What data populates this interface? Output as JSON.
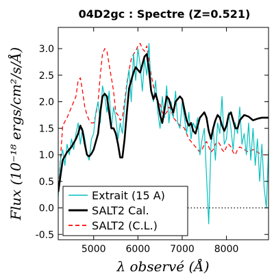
{
  "chart_data": {
    "type": "line",
    "title": "04D2gc : Spectre (Z=0.521)",
    "xlabel": "λ observé (Å)",
    "ylabel": "Flux (10⁻¹⁸ ergs/cm²/s/Å)",
    "xlim": [
      4200,
      8950
    ],
    "ylim": [
      -0.6,
      3.4
    ],
    "xticks": [
      5000,
      6000,
      7000,
      8000
    ],
    "yticks": [
      -0.5,
      0.0,
      0.5,
      1.0,
      1.5,
      2.0,
      2.5,
      3.0
    ],
    "xtick_labels": [
      "5000",
      "6000",
      "7000",
      "8000"
    ],
    "ytick_labels": [
      "-0.5",
      "0.0",
      "0.5",
      "1.0",
      "1.5",
      "2.0",
      "2.5",
      "3.0"
    ],
    "zero_line": 0.0,
    "legend_position": "lower-left",
    "series": [
      {
        "name": "Extrait (15 A)",
        "color": "#00bfbf",
        "style": "solid",
        "x": [
          4200,
          4250,
          4300,
          4350,
          4400,
          4450,
          4500,
          4550,
          4600,
          4650,
          4700,
          4750,
          4800,
          4850,
          4900,
          4950,
          5000,
          5050,
          5100,
          5150,
          5200,
          5250,
          5300,
          5350,
          5400,
          5450,
          5500,
          5550,
          5600,
          5650,
          5700,
          5750,
          5800,
          5850,
          5900,
          5950,
          6000,
          6050,
          6100,
          6150,
          6200,
          6250,
          6300,
          6350,
          6400,
          6450,
          6500,
          6550,
          6600,
          6650,
          6700,
          6750,
          6800,
          6850,
          6900,
          6950,
          7000,
          7050,
          7100,
          7150,
          7200,
          7250,
          7300,
          7350,
          7400,
          7450,
          7500,
          7550,
          7600,
          7650,
          7700,
          7750,
          7800,
          7850,
          7900,
          7950,
          8000,
          8050,
          8100,
          8150,
          8200,
          8250,
          8300,
          8350,
          8400,
          8450,
          8500,
          8550,
          8600,
          8650,
          8700,
          8750,
          8800,
          8850,
          8900,
          8950
        ],
        "y": [
          0.2,
          0.9,
          1.1,
          0.8,
          1.2,
          1.0,
          1.3,
          1.1,
          1.4,
          1.6,
          1.2,
          1.5,
          1.3,
          1.0,
          0.9,
          1.3,
          1.4,
          1.8,
          2.0,
          1.6,
          2.3,
          2.1,
          1.8,
          2.2,
          1.5,
          1.9,
          1.7,
          1.3,
          1.6,
          1.4,
          1.9,
          2.3,
          2.6,
          2.0,
          2.9,
          2.4,
          3.0,
          2.7,
          2.2,
          2.8,
          2.5,
          3.1,
          2.2,
          2.0,
          2.4,
          1.8,
          1.5,
          2.1,
          1.7,
          2.3,
          1.6,
          2.0,
          1.7,
          2.2,
          1.6,
          1.5,
          2.0,
          1.7,
          1.4,
          1.8,
          1.3,
          1.6,
          1.5,
          1.7,
          1.0,
          1.3,
          1.5,
          0.6,
          -0.3,
          1.2,
          1.5,
          0.9,
          1.6,
          1.4,
          2.1,
          1.2,
          1.3,
          1.8,
          1.5,
          1.1,
          1.6,
          1.4,
          1.9,
          1.2,
          1.4,
          1.0,
          1.6,
          0.9,
          1.5,
          0.8,
          1.3,
          0.5,
          1.2,
          0.4,
          0.0,
          1.1
        ]
      },
      {
        "name": "SALT2 Cal.",
        "color": "#000000",
        "style": "solid",
        "x": [
          4200,
          4300,
          4400,
          4500,
          4600,
          4650,
          4700,
          4750,
          4800,
          4850,
          4900,
          4950,
          5000,
          5100,
          5150,
          5200,
          5250,
          5300,
          5350,
          5400,
          5450,
          5500,
          5550,
          5600,
          5650,
          5700,
          5750,
          5800,
          5850,
          5900,
          5950,
          6000,
          6050,
          6100,
          6150,
          6200,
          6250,
          6300,
          6350,
          6400,
          6450,
          6500,
          6550,
          6600,
          6650,
          6700,
          6750,
          6800,
          6850,
          6900,
          6950,
          7000,
          7050,
          7100,
          7150,
          7200,
          7250,
          7300,
          7350,
          7400,
          7450,
          7500,
          7550,
          7600,
          7650,
          7700,
          7750,
          7800,
          7850,
          7900,
          7950,
          8000,
          8050,
          8100,
          8150,
          8200,
          8250,
          8300,
          8400,
          8500,
          8600,
          8700,
          8800,
          8900,
          8950
        ],
        "y": [
          0.3,
          0.9,
          1.05,
          1.15,
          1.3,
          1.4,
          1.55,
          1.45,
          1.2,
          1.0,
          0.97,
          1.02,
          1.1,
          1.4,
          1.8,
          2.1,
          2.15,
          2.1,
          1.8,
          1.5,
          1.5,
          1.4,
          1.2,
          0.95,
          0.95,
          1.3,
          1.8,
          2.25,
          2.4,
          2.55,
          2.65,
          2.6,
          2.55,
          2.7,
          2.85,
          2.9,
          2.6,
          2.2,
          2.05,
          2.15,
          2.0,
          1.75,
          1.6,
          1.85,
          2.1,
          2.05,
          1.9,
          1.8,
          2.0,
          2.05,
          2.1,
          2.05,
          1.85,
          1.65,
          1.55,
          1.6,
          1.45,
          1.4,
          1.55,
          1.7,
          1.75,
          1.8,
          1.7,
          1.45,
          1.3,
          1.5,
          1.65,
          1.75,
          1.7,
          1.55,
          1.45,
          1.55,
          1.75,
          1.8,
          1.65,
          1.5,
          1.5,
          1.65,
          1.75,
          1.72,
          1.65,
          1.68,
          1.7,
          1.7,
          1.7
        ]
      },
      {
        "name": "SALT2 (C.L.)",
        "color": "#ff0000",
        "style": "dashed",
        "x": [
          4200,
          4300,
          4400,
          4500,
          4550,
          4600,
          4650,
          4700,
          4750,
          4800,
          4850,
          4900,
          4950,
          5000,
          5050,
          5100,
          5150,
          5200,
          5250,
          5300,
          5350,
          5400,
          5450,
          5500,
          5550,
          5600,
          5650,
          5700,
          5750,
          5800,
          5850,
          5900,
          5950,
          6000,
          6050,
          6100,
          6150,
          6200,
          6250,
          6300,
          6350,
          6400,
          6450,
          6500,
          6550,
          6600,
          6650,
          6700,
          6750,
          6800,
          6850,
          6900,
          6950,
          7000,
          7050,
          7100,
          7150,
          7200,
          7250,
          7300,
          7350,
          7400,
          7450,
          7500,
          7550,
          7600,
          7650,
          7700,
          7750,
          7800,
          7850,
          7900,
          7950,
          8000,
          8050,
          8100,
          8150,
          8200,
          8250,
          8300,
          8400,
          8500,
          8600,
          8700,
          8800,
          8900,
          8950
        ],
        "y": [
          0.3,
          1.55,
          1.7,
          1.9,
          2.0,
          2.1,
          2.4,
          2.45,
          2.2,
          1.9,
          1.75,
          1.65,
          1.6,
          1.6,
          1.75,
          2.0,
          2.5,
          2.9,
          3.0,
          2.95,
          2.7,
          2.45,
          2.2,
          1.8,
          1.75,
          1.65,
          1.7,
          2.0,
          2.35,
          2.6,
          2.8,
          2.9,
          2.95,
          3.05,
          3.1,
          3.0,
          2.95,
          3.05,
          2.8,
          2.5,
          2.3,
          2.1,
          2.0,
          1.95,
          1.8,
          1.75,
          1.8,
          1.9,
          1.85,
          1.7,
          1.65,
          1.6,
          1.55,
          1.55,
          1.5,
          1.4,
          1.3,
          1.25,
          1.2,
          1.15,
          1.1,
          1.05,
          1.1,
          1.2,
          1.25,
          1.15,
          1.05,
          1.1,
          1.2,
          1.25,
          1.2,
          1.1,
          1.05,
          1.15,
          1.2,
          1.15,
          1.05,
          1.0,
          1.1,
          1.15,
          1.1,
          1.05,
          1.1,
          1.05,
          1.0,
          1.0,
          1.0
        ]
      }
    ]
  }
}
